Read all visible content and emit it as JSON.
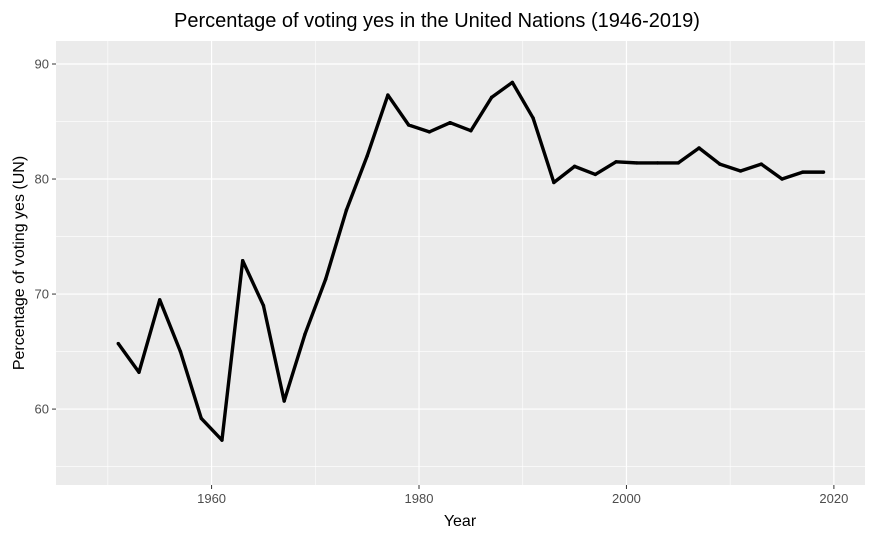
{
  "chart_data": {
    "type": "line",
    "title": "Percentage of voting yes in the United Nations (1946-2019)",
    "xlabel": "Year",
    "ylabel": "Percentage of voting yes (UN)",
    "xlim": [
      1945,
      2023
    ],
    "ylim": [
      53.4,
      92.0
    ],
    "x_ticks": [
      1960,
      1980,
      2000,
      2020
    ],
    "y_ticks": [
      60,
      70,
      80,
      90
    ],
    "grid": true,
    "legend": "none",
    "colors": {
      "panel_background": "#ebebeb",
      "grid": "#ffffff",
      "line": "#000000"
    },
    "series": [
      {
        "x": [
          1951,
          1953,
          1955,
          1957,
          1959,
          1961,
          1963,
          1965,
          1967,
          1969,
          1971,
          1973,
          1975,
          1977,
          1979,
          1981,
          1983,
          1985,
          1987,
          1989,
          1991,
          1993,
          1995,
          1997,
          1999,
          2001,
          2003,
          2005,
          2007,
          2009,
          2011,
          2013,
          2015,
          2017,
          2019
        ],
        "values": [
          65.7,
          63.2,
          69.5,
          65.0,
          59.2,
          57.3,
          72.9,
          69.0,
          60.7,
          66.5,
          71.3,
          77.3,
          82.0,
          87.3,
          84.7,
          84.1,
          84.9,
          84.2,
          87.1,
          88.4,
          85.3,
          79.7,
          81.1,
          80.4,
          81.5,
          81.4,
          81.4,
          81.4,
          82.7,
          81.3,
          80.7,
          81.3,
          80.0,
          80.6,
          80.6
        ]
      }
    ]
  }
}
